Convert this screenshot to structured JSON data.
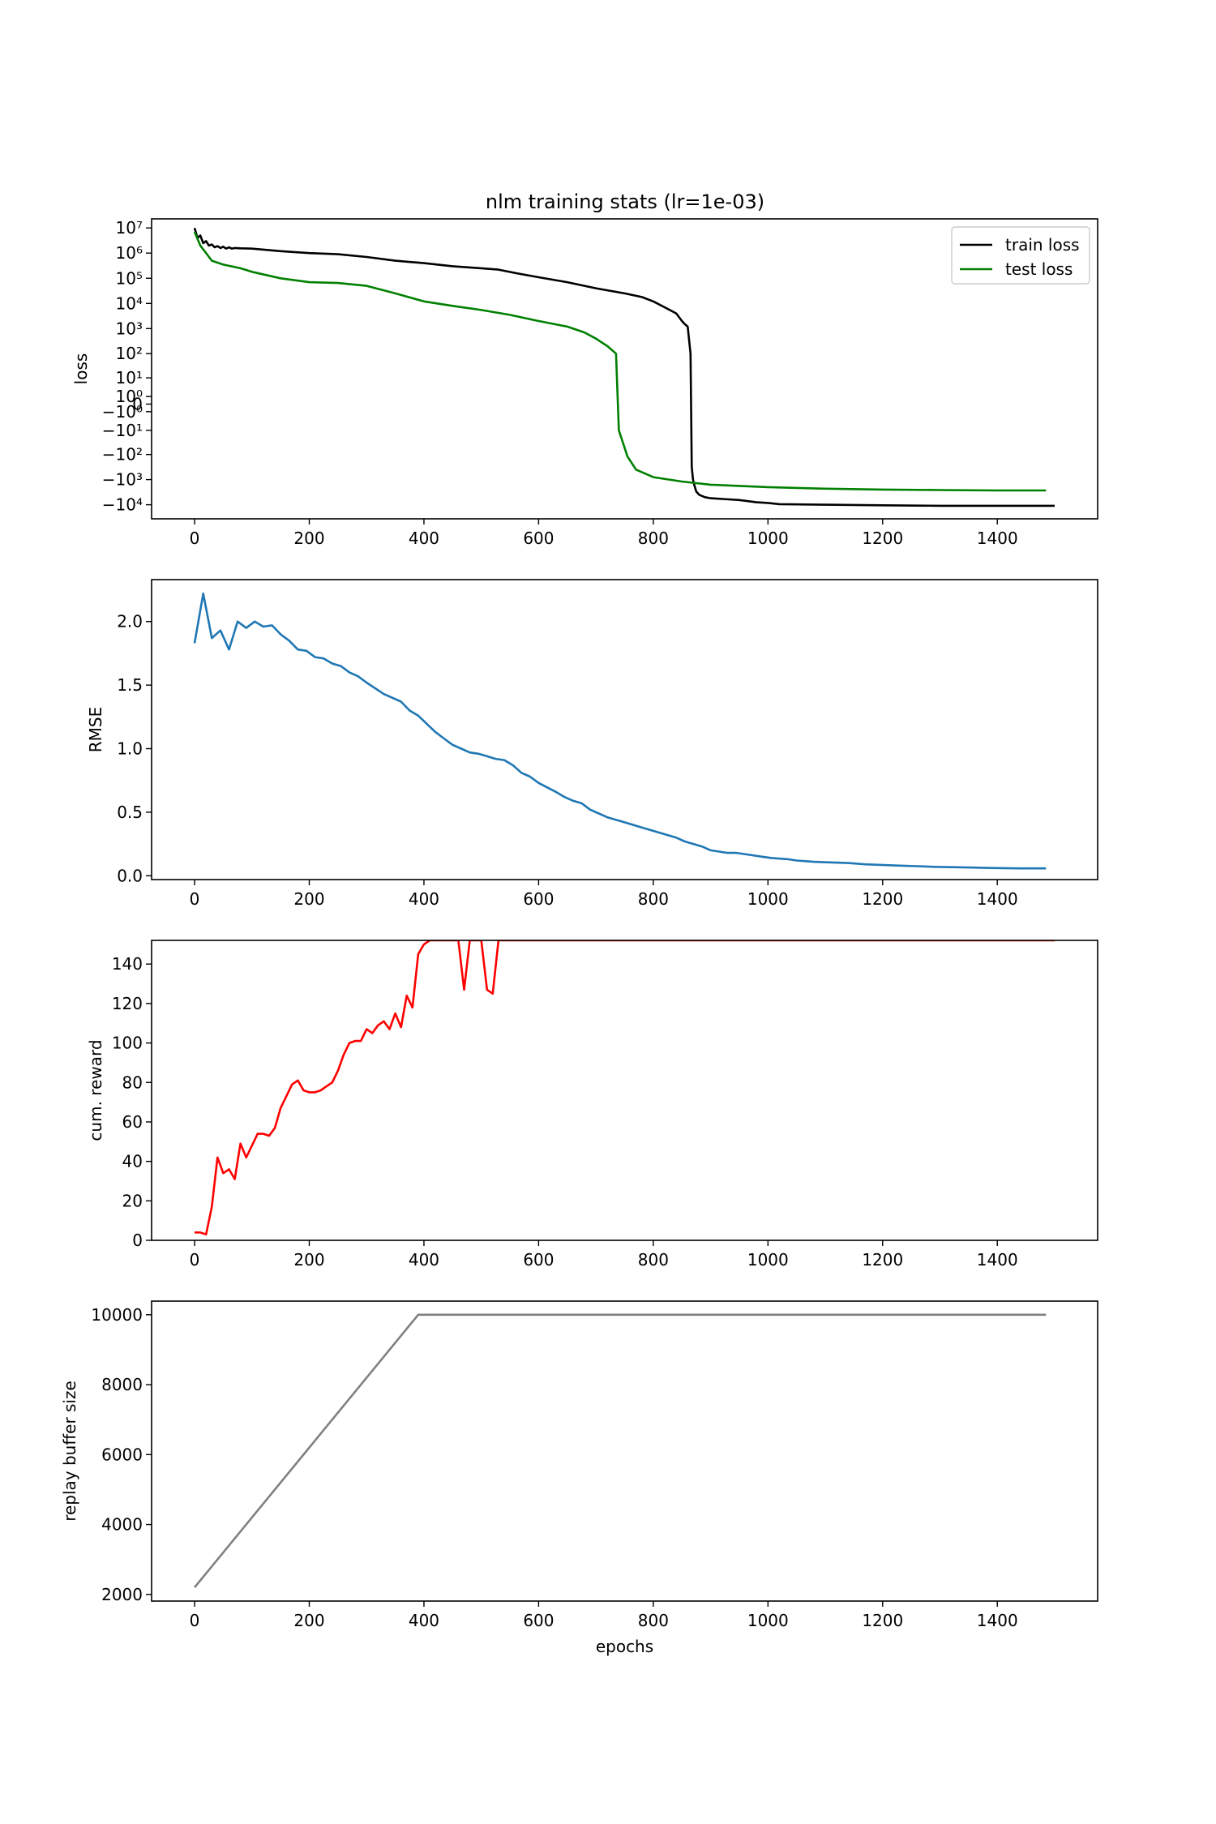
{
  "chart_data": [
    {
      "type": "line",
      "title": "nlm training stats (lr=1e-03)",
      "ylabel": "loss",
      "xlabel": "",
      "y_scale": "symlog",
      "xlim": [
        -75,
        1575
      ],
      "xticks": [
        0,
        200,
        400,
        600,
        800,
        1000,
        1200,
        1400
      ],
      "yticks": [
        {
          "value": 10000000,
          "label": "10⁷"
        },
        {
          "value": 1000000,
          "label": "10⁶"
        },
        {
          "value": 100000,
          "label": "10⁵"
        },
        {
          "value": 10000,
          "label": "10⁴"
        },
        {
          "value": 1000,
          "label": "10³"
        },
        {
          "value": 100,
          "label": "10²"
        },
        {
          "value": 10,
          "label": "10¹"
        },
        {
          "value": 1,
          "label": "10⁰"
        },
        {
          "value": 0,
          "label": "0"
        },
        {
          "value": -1,
          "label": "−10⁰"
        },
        {
          "value": -10,
          "label": "−10¹"
        },
        {
          "value": -100,
          "label": "−10²"
        },
        {
          "value": -1000,
          "label": "−10³"
        },
        {
          "value": -10000,
          "label": "−10⁴"
        }
      ],
      "legend_position": "upper right",
      "series": [
        {
          "name": "train loss",
          "color": "#000000",
          "x": [
            0,
            5,
            10,
            15,
            20,
            25,
            30,
            35,
            40,
            45,
            50,
            55,
            60,
            65,
            70,
            80,
            100,
            150,
            200,
            250,
            300,
            350,
            400,
            450,
            500,
            530,
            560,
            600,
            650,
            700,
            750,
            780,
            800,
            820,
            840,
            850,
            855,
            860,
            865,
            867,
            869,
            870,
            872,
            875,
            880,
            890,
            900,
            950,
            980,
            1000,
            1020,
            1100,
            1200,
            1300,
            1400,
            1500
          ],
          "y": [
            10000000,
            4000000,
            5000000,
            2500000,
            3000000,
            2000000,
            2200000,
            1700000,
            1900000,
            1600000,
            1800000,
            1500000,
            1700000,
            1500000,
            1600000,
            1550000,
            1500000,
            1200000,
            1000000,
            900000,
            700000,
            500000,
            400000,
            300000,
            250000,
            220000,
            160000,
            110000,
            70000,
            40000,
            25000,
            18000,
            12000,
            7000,
            4000,
            2000,
            1500,
            1200,
            100,
            -300,
            -900,
            -1200,
            -1800,
            -3000,
            -4000,
            -5000,
            -5500,
            -6500,
            -8000,
            -8500,
            -9500,
            -10000,
            -10500,
            -11000,
            -11000,
            -11000
          ]
        },
        {
          "name": "test loss",
          "color": "#008000",
          "x": [
            0,
            10,
            20,
            30,
            50,
            80,
            100,
            150,
            200,
            250,
            300,
            350,
            400,
            450,
            500,
            550,
            600,
            650,
            680,
            700,
            720,
            735,
            740,
            755,
            770,
            800,
            850,
            900,
            1000,
            1100,
            1200,
            1300,
            1400,
            1485
          ],
          "y": [
            7000000,
            2000000,
            1000000,
            500000,
            350000,
            250000,
            180000,
            100000,
            70000,
            65000,
            50000,
            25000,
            12000,
            8000,
            5500,
            3500,
            2000,
            1200,
            700,
            400,
            200,
            100,
            -10,
            -120,
            -400,
            -800,
            -1200,
            -1600,
            -2000,
            -2300,
            -2500,
            -2600,
            -2700,
            -2700
          ]
        }
      ]
    },
    {
      "type": "line",
      "ylabel": "RMSE",
      "xlabel": "",
      "xlim": [
        -75,
        1575
      ],
      "ylim": [
        -0.03,
        2.33
      ],
      "xticks": [
        0,
        200,
        400,
        600,
        800,
        1000,
        1200,
        1400
      ],
      "yticks": [
        0.0,
        0.5,
        1.0,
        1.5,
        2.0
      ],
      "ytick_labels": [
        "0.0",
        "0.5",
        "1.0",
        "1.5",
        "2.0"
      ],
      "series": [
        {
          "name": "",
          "color": "#1f77b4",
          "x": [
            0,
            15,
            30,
            45,
            60,
            75,
            90,
            105,
            120,
            135,
            150,
            165,
            180,
            195,
            210,
            225,
            240,
            255,
            270,
            285,
            300,
            330,
            360,
            375,
            390,
            420,
            435,
            450,
            465,
            480,
            495,
            510,
            525,
            540,
            555,
            570,
            585,
            600,
            630,
            645,
            660,
            675,
            690,
            705,
            720,
            750,
            780,
            795,
            810,
            825,
            840,
            855,
            870,
            885,
            900,
            915,
            930,
            945,
            960,
            990,
            1005,
            1035,
            1050,
            1080,
            1140,
            1170,
            1230,
            1260,
            1290,
            1350,
            1380,
            1410,
            1440,
            1485
          ],
          "y": [
            1.83,
            2.22,
            1.87,
            1.93,
            1.78,
            2.0,
            1.95,
            2.0,
            1.96,
            1.97,
            1.9,
            1.85,
            1.78,
            1.77,
            1.72,
            1.71,
            1.67,
            1.65,
            1.6,
            1.57,
            1.52,
            1.43,
            1.37,
            1.3,
            1.26,
            1.13,
            1.08,
            1.03,
            1.0,
            0.97,
            0.96,
            0.94,
            0.92,
            0.91,
            0.87,
            0.81,
            0.78,
            0.73,
            0.66,
            0.62,
            0.59,
            0.57,
            0.52,
            0.49,
            0.46,
            0.42,
            0.38,
            0.36,
            0.34,
            0.32,
            0.3,
            0.27,
            0.25,
            0.23,
            0.2,
            0.19,
            0.18,
            0.18,
            0.17,
            0.15,
            0.14,
            0.13,
            0.12,
            0.11,
            0.1,
            0.09,
            0.08,
            0.075,
            0.07,
            0.065,
            0.062,
            0.06,
            0.058,
            0.058
          ]
        }
      ]
    },
    {
      "type": "line",
      "ylabel": "cum. reward",
      "xlabel": "",
      "xlim": [
        -75,
        1575
      ],
      "ylim": [
        0,
        152
      ],
      "xticks": [
        0,
        200,
        400,
        600,
        800,
        1000,
        1200,
        1400
      ],
      "yticks": [
        0,
        20,
        40,
        60,
        80,
        100,
        120,
        140
      ],
      "series": [
        {
          "name": "",
          "color": "#ff0000",
          "x": [
            0,
            10,
            20,
            30,
            40,
            50,
            60,
            70,
            80,
            90,
            100,
            110,
            120,
            130,
            140,
            150,
            160,
            170,
            180,
            190,
            200,
            210,
            220,
            230,
            240,
            250,
            260,
            270,
            280,
            290,
            300,
            310,
            320,
            330,
            340,
            350,
            360,
            370,
            380,
            390,
            400,
            410,
            420,
            430,
            440,
            450,
            460,
            470,
            480,
            490,
            500,
            510,
            520,
            530,
            540,
            1500
          ],
          "y": [
            4,
            4,
            3,
            17,
            42,
            34,
            36,
            31,
            49,
            42,
            48,
            54,
            54,
            53,
            57,
            67,
            73,
            79,
            81,
            76,
            75,
            75,
            76,
            78,
            80,
            86,
            94,
            100,
            101,
            101,
            107,
            105,
            109,
            111,
            107,
            115,
            108,
            124,
            118,
            145,
            150,
            152,
            152,
            152,
            152,
            152,
            152,
            127,
            152,
            152,
            152,
            127,
            125,
            152,
            152,
            152
          ]
        }
      ]
    },
    {
      "type": "line",
      "ylabel": "replay buffer size",
      "xlabel": "epochs",
      "xlim": [
        -75,
        1575
      ],
      "ylim": [
        1810,
        10390
      ],
      "xticks": [
        0,
        200,
        400,
        600,
        800,
        1000,
        1200,
        1400
      ],
      "yticks": [
        2000,
        4000,
        6000,
        8000,
        10000
      ],
      "series": [
        {
          "name": "",
          "color": "#808080",
          "x": [
            0,
            390,
            1485
          ],
          "y": [
            2200,
            10000,
            10000
          ]
        }
      ]
    }
  ],
  "ui": {
    "axis_color": "#000000"
  }
}
